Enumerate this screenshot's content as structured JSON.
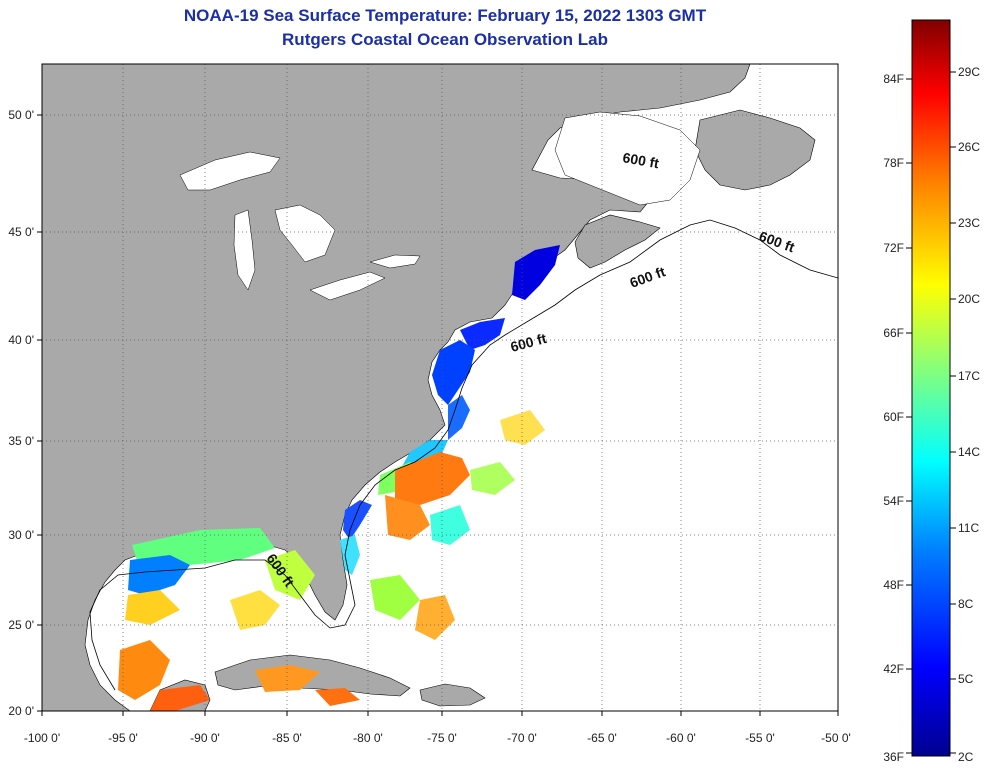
{
  "title": "NOAA-19 Sea Surface Temperature:  February 15, 2022 1303 GMT",
  "subtitle": "Rutgers Coastal Ocean Observation Lab",
  "map": {
    "lon_range": [
      -100,
      -50
    ],
    "lat_range": [
      20,
      52.5
    ],
    "lon_ticks": [
      "-100 0'",
      "-95 0'",
      "-90 0'",
      "-85 0'",
      "-80 0'",
      "-75 0'",
      "-70 0'",
      "-65 0'",
      "-60 0'",
      "-55 0'",
      "-50 0'"
    ],
    "lat_ticks": [
      "20 0'",
      "25 0'",
      "30 0'",
      "35 0'",
      "40 0'",
      "45 0'",
      "50 0'"
    ],
    "land_color": "#a9a9a9",
    "ocean_color": "#ffffff",
    "isobath_labels": [
      "600 ft",
      "600 ft",
      "600 ft",
      "600 ft",
      "600 ft"
    ]
  },
  "colorbar": {
    "fahrenheit_labels": [
      "36F",
      "42F",
      "48F",
      "54F",
      "60F",
      "66F",
      "72F",
      "78F",
      "84F"
    ],
    "celsius_labels": [
      "2C",
      "5C",
      "8C",
      "11C",
      "14C",
      "17C",
      "20C",
      "23C",
      "26C",
      "29C"
    ],
    "range_c": [
      2,
      31
    ],
    "colors": [
      "#00008f",
      "#0000ff",
      "#0080ff",
      "#00ffff",
      "#80ff80",
      "#ffff00",
      "#ff8000",
      "#ff0000",
      "#800000"
    ]
  }
}
